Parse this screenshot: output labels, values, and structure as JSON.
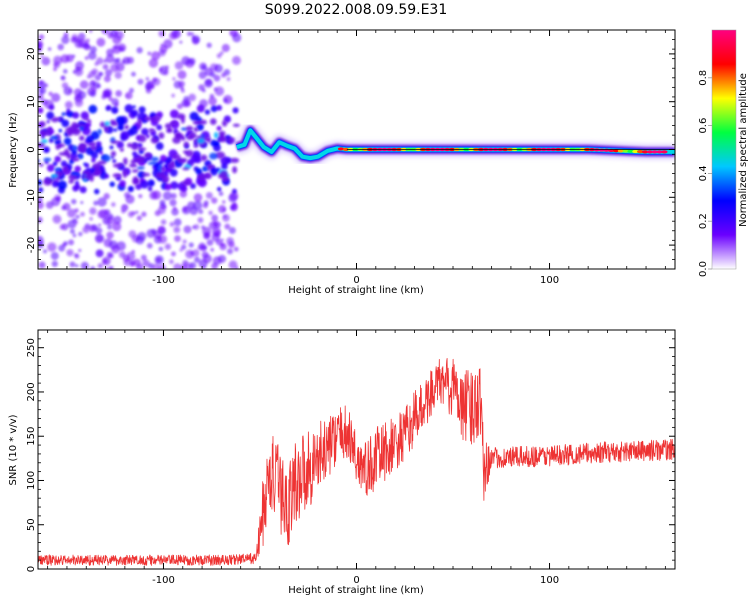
{
  "title": "S099.2022.008.09.59.E31",
  "chart_data": [
    {
      "type": "heatmap",
      "xlabel": "Height of straight line (km)",
      "ylabel": "Frequency (Hz)",
      "xlim": [
        -165,
        165
      ],
      "ylim": [
        -25,
        25
      ],
      "x_ticks": [
        -100,
        0,
        100
      ],
      "y_ticks": [
        -20,
        -10,
        0,
        10,
        20
      ],
      "colorbar": {
        "label": "Normalized spectral amplitude",
        "range": [
          0,
          1
        ],
        "ticks": [
          "0.0",
          "0.2",
          "0.4",
          "0.6",
          "0.8"
        ],
        "colors": [
          "#ffffff",
          "#6a00ff",
          "#0000ff",
          "#00c8ff",
          "#00ff40",
          "#ffff00",
          "#ff0000",
          "#ff0080"
        ]
      },
      "ridge_frequency_hz": [
        [
          -62,
          0.5
        ],
        [
          -58,
          1.0
        ],
        [
          -55,
          4.0
        ],
        [
          -52,
          2.5
        ],
        [
          -48,
          0.5
        ],
        [
          -44,
          -0.5
        ],
        [
          -40,
          1.5
        ],
        [
          -36,
          0.8
        ],
        [
          -32,
          0.2
        ],
        [
          -28,
          -1.5
        ],
        [
          -24,
          -1.8
        ],
        [
          -20,
          -1.5
        ],
        [
          -15,
          -0.3
        ],
        [
          -10,
          0.2
        ],
        [
          -5,
          0.0
        ],
        [
          0,
          0.0
        ],
        [
          20,
          0.0
        ],
        [
          50,
          0.0
        ],
        [
          70,
          0.0
        ],
        [
          90,
          0.0
        ],
        [
          120,
          0.0
        ],
        [
          150,
          -0.5
        ],
        [
          165,
          -0.5
        ]
      ],
      "noise_region_km": [
        -165,
        -62
      ]
    },
    {
      "type": "line",
      "xlabel": "Height of straight line (km)",
      "ylabel": "SNR (10 * v/v)",
      "xlim": [
        -165,
        165
      ],
      "ylim": [
        0,
        270
      ],
      "x_ticks": [
        -100,
        0,
        100
      ],
      "y_ticks": [
        0,
        50,
        100,
        150,
        200,
        250
      ],
      "color": "#ee3333",
      "trend_points": [
        [
          -165,
          10
        ],
        [
          -70,
          10
        ],
        [
          -52,
          12
        ],
        [
          -48,
          70
        ],
        [
          -44,
          110
        ],
        [
          -40,
          90
        ],
        [
          -36,
          70
        ],
        [
          -32,
          95
        ],
        [
          -28,
          110
        ],
        [
          -24,
          115
        ],
        [
          -20,
          125
        ],
        [
          -16,
          135
        ],
        [
          -10,
          150
        ],
        [
          -6,
          155
        ],
        [
          -2,
          140
        ],
        [
          0,
          125
        ],
        [
          5,
          110
        ],
        [
          10,
          125
        ],
        [
          20,
          140
        ],
        [
          25,
          150
        ],
        [
          30,
          170
        ],
        [
          35,
          185
        ],
        [
          40,
          205
        ],
        [
          45,
          210
        ],
        [
          50,
          205
        ],
        [
          55,
          185
        ],
        [
          60,
          180
        ],
        [
          64,
          200
        ],
        [
          66,
          120
        ],
        [
          70,
          125
        ],
        [
          100,
          128
        ],
        [
          130,
          132
        ],
        [
          165,
          135
        ]
      ],
      "noise_amplitude": [
        [
          -165,
          6
        ],
        [
          -52,
          6
        ],
        [
          -48,
          45
        ],
        [
          -30,
          50
        ],
        [
          -10,
          30
        ],
        [
          10,
          35
        ],
        [
          40,
          28
        ],
        [
          60,
          45
        ],
        [
          66,
          45
        ],
        [
          70,
          12
        ],
        [
          165,
          12
        ]
      ]
    }
  ]
}
